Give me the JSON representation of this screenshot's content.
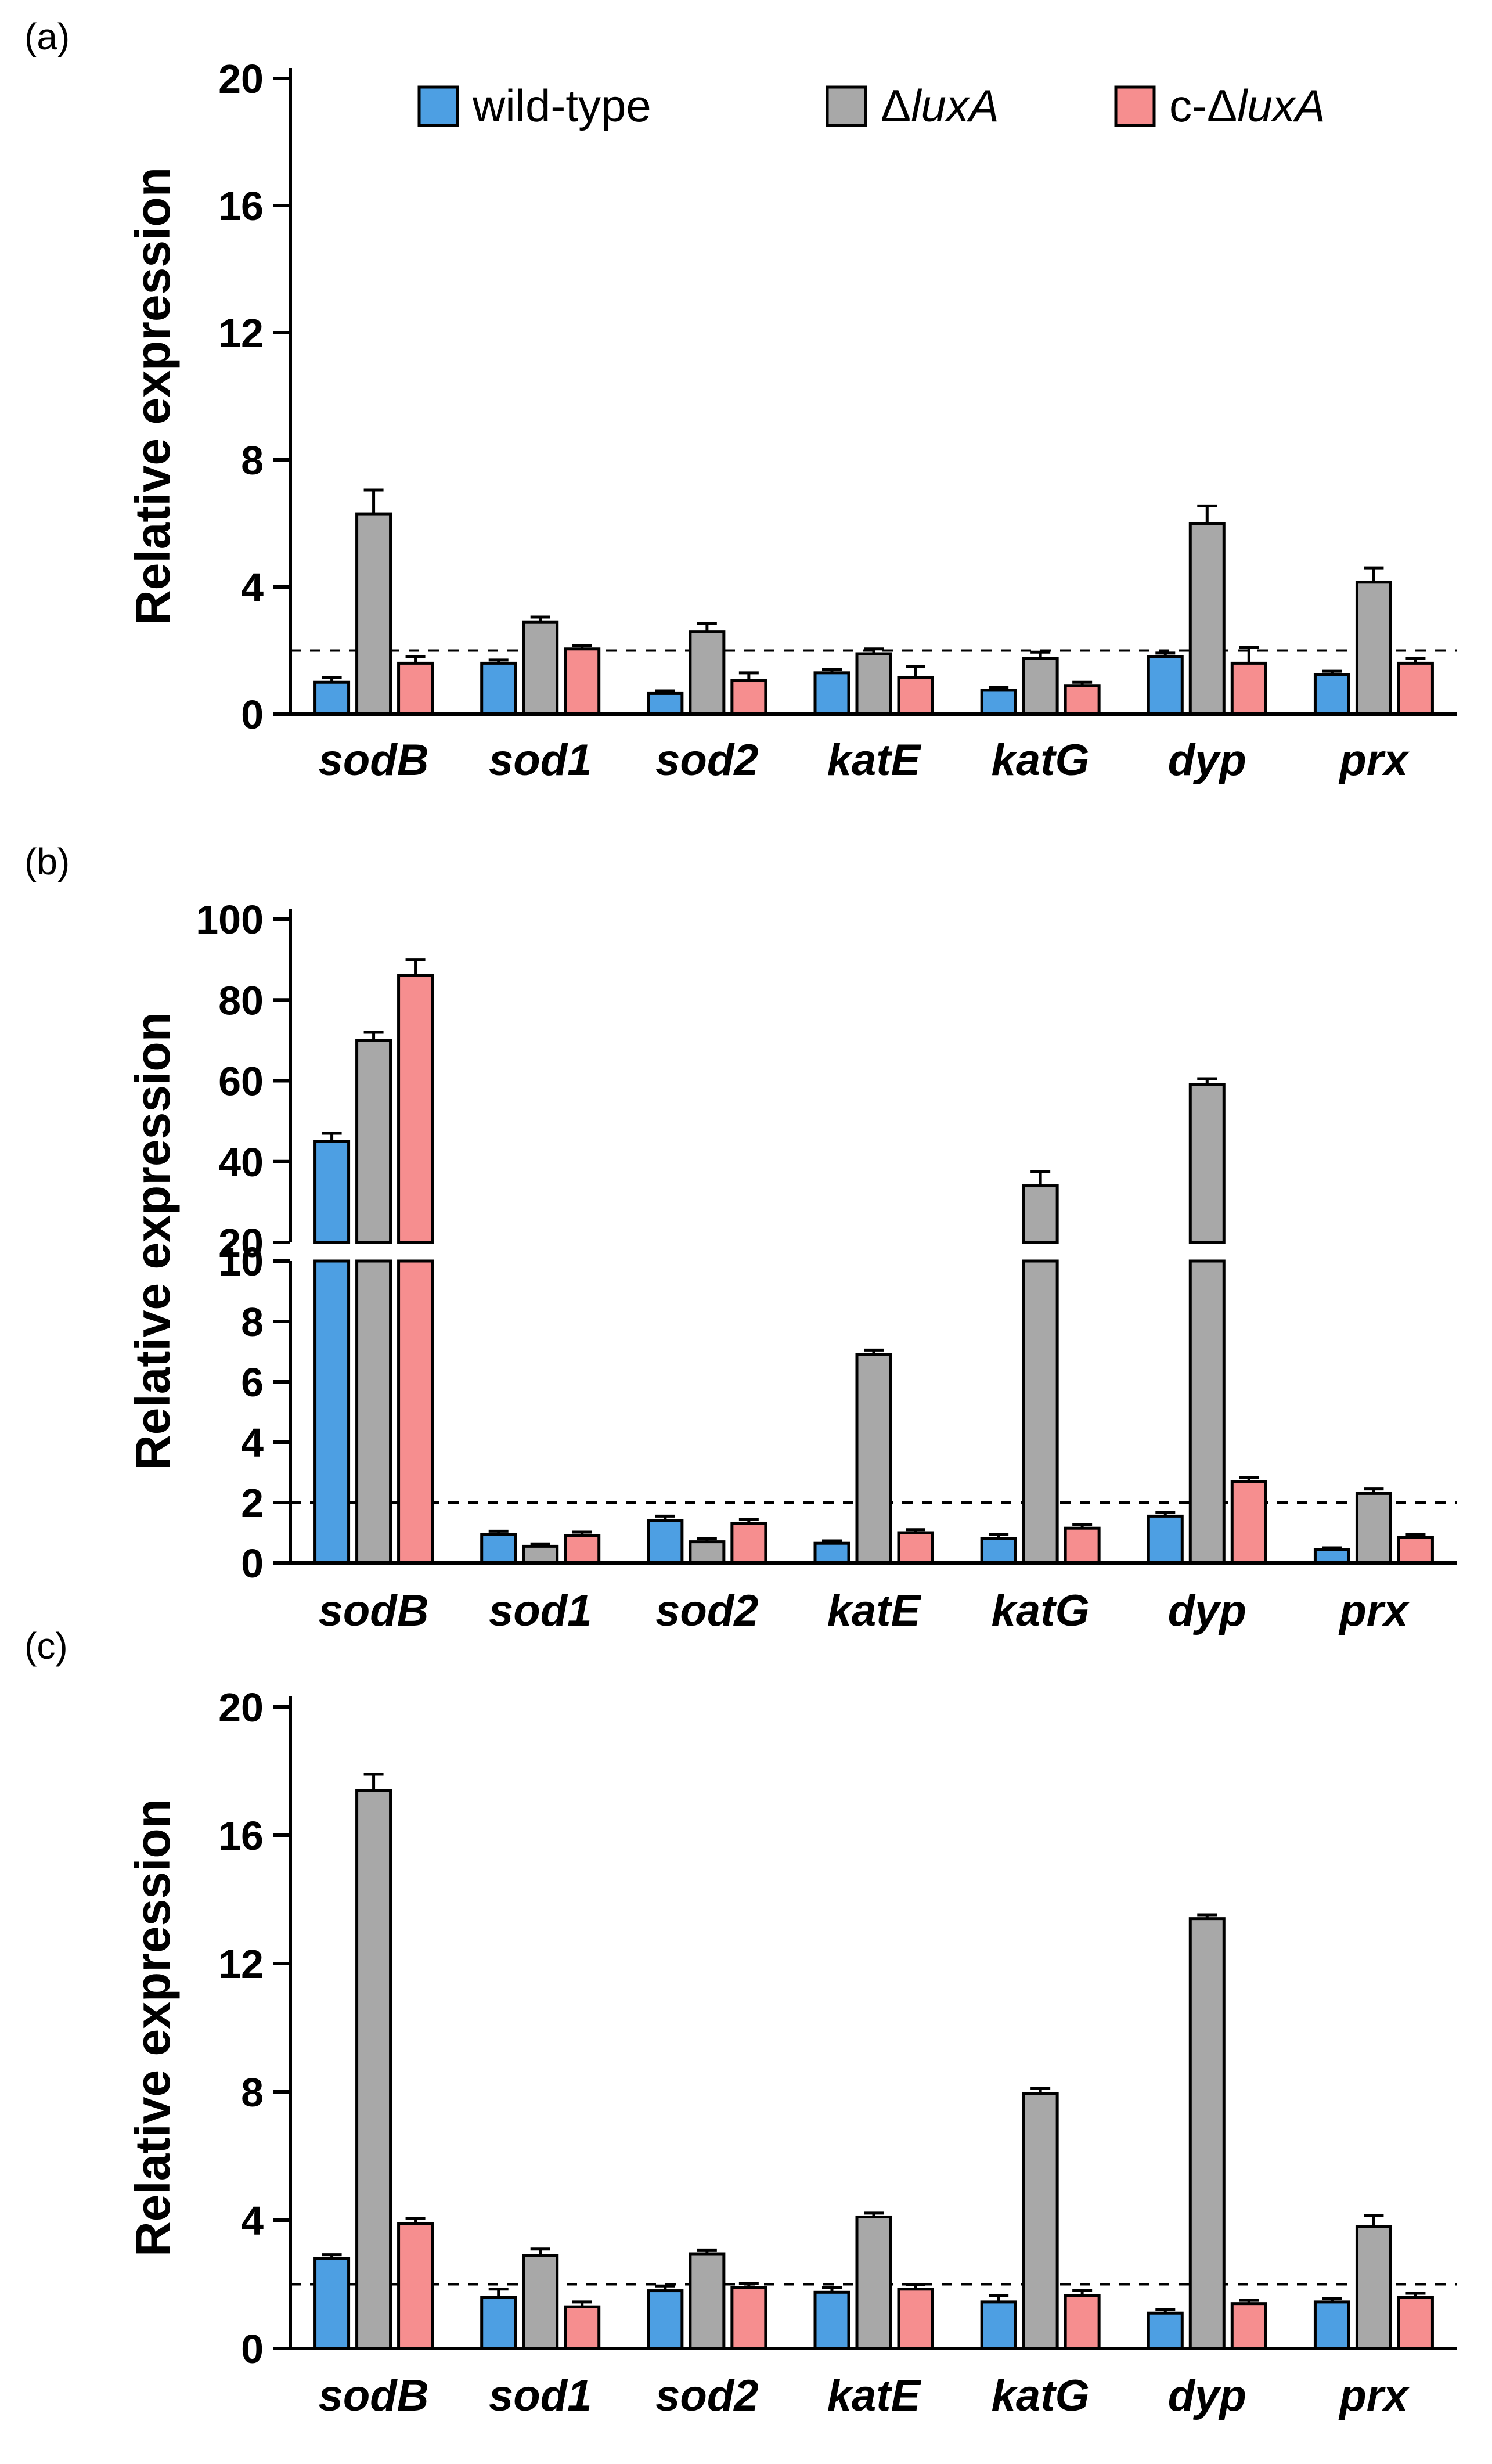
{
  "figure": {
    "background": "#ffffff",
    "panels": [
      {
        "id": "a",
        "label": "(a)"
      },
      {
        "id": "b",
        "label": "(b)"
      },
      {
        "id": "c",
        "label": "(c)"
      }
    ]
  },
  "legend": {
    "position": "top-inside-panel-a",
    "swatch_border": "#000000",
    "items": [
      {
        "name": "wild-type",
        "plain": "wild-type",
        "italic": "",
        "color": "#4D9FE3"
      },
      {
        "name": "delta-luxA",
        "plain": "Δ",
        "italic": "luxA",
        "color": "#A8A8A8"
      },
      {
        "name": "c-delta-luxA",
        "plain": "c-Δ",
        "italic": "luxA",
        "color": "#F68E8F"
      }
    ]
  },
  "chart_data": [
    {
      "panel": "a",
      "type": "bar",
      "title": "",
      "ylabel": "Relative expression",
      "xlabel": "",
      "ylim": [
        0,
        20
      ],
      "yticks": [
        0,
        4,
        8,
        12,
        16,
        20
      ],
      "reference_line": 2,
      "grid": false,
      "categories": [
        "sodB",
        "sod1",
        "sod2",
        "katE",
        "katG",
        "dyp",
        "prx"
      ],
      "series": [
        {
          "name": "wild-type",
          "values": [
            1.0,
            1.6,
            0.65,
            1.3,
            0.75,
            1.8,
            1.25
          ],
          "errors": [
            0.15,
            0.1,
            0.08,
            0.1,
            0.08,
            0.12,
            0.1
          ]
        },
        {
          "name": "ΔluxA",
          "values": [
            6.3,
            2.9,
            2.6,
            1.9,
            1.75,
            6.0,
            4.15
          ],
          "errors": [
            0.75,
            0.15,
            0.25,
            0.15,
            0.2,
            0.55,
            0.45
          ]
        },
        {
          "name": "c-ΔluxA",
          "values": [
            1.6,
            2.05,
            1.05,
            1.15,
            0.9,
            1.6,
            1.6
          ],
          "errors": [
            0.2,
            0.1,
            0.25,
            0.35,
            0.1,
            0.5,
            0.15
          ]
        }
      ]
    },
    {
      "panel": "b",
      "type": "bar",
      "title": "",
      "ylabel": "Relative expression",
      "xlabel": "",
      "axis_break": {
        "lower_range": [
          0,
          10
        ],
        "lower_ticks": [
          0,
          2,
          4,
          6,
          8,
          10
        ],
        "upper_range": [
          20,
          100
        ],
        "upper_ticks": [
          20,
          40,
          60,
          80,
          100
        ]
      },
      "reference_line": 2,
      "grid": false,
      "categories": [
        "sodB",
        "sod1",
        "sod2",
        "katE",
        "katG",
        "dyp",
        "prx"
      ],
      "series": [
        {
          "name": "wild-type",
          "values": [
            45,
            0.95,
            1.4,
            0.65,
            0.8,
            1.55,
            0.45
          ],
          "errors": [
            2,
            0.1,
            0.15,
            0.08,
            0.15,
            0.12,
            0.05
          ]
        },
        {
          "name": "ΔluxA",
          "values": [
            70,
            0.55,
            0.7,
            6.9,
            34,
            59,
            2.3
          ],
          "errors": [
            2,
            0.08,
            0.1,
            0.15,
            3.5,
            1.5,
            0.15
          ]
        },
        {
          "name": "c-ΔluxA",
          "values": [
            86,
            0.9,
            1.3,
            1.0,
            1.15,
            2.7,
            0.85
          ],
          "errors": [
            4,
            0.12,
            0.15,
            0.1,
            0.12,
            0.12,
            0.1
          ]
        }
      ]
    },
    {
      "panel": "c",
      "type": "bar",
      "title": "",
      "ylabel": "Relative expression",
      "xlabel": "",
      "ylim": [
        0,
        20
      ],
      "yticks": [
        0,
        4,
        8,
        12,
        16,
        20
      ],
      "reference_line": 2,
      "grid": false,
      "categories": [
        "sodB",
        "sod1",
        "sod2",
        "katE",
        "katG",
        "dyp",
        "prx"
      ],
      "series": [
        {
          "name": "wild-type",
          "values": [
            2.8,
            1.6,
            1.8,
            1.75,
            1.45,
            1.1,
            1.45
          ],
          "errors": [
            0.12,
            0.25,
            0.15,
            0.15,
            0.2,
            0.12,
            0.1
          ]
        },
        {
          "name": "ΔluxA",
          "values": [
            17.4,
            2.9,
            2.95,
            4.1,
            7.95,
            13.4,
            3.8
          ],
          "errors": [
            0.5,
            0.2,
            0.12,
            0.12,
            0.15,
            0.12,
            0.35
          ]
        },
        {
          "name": "c-ΔluxA",
          "values": [
            3.9,
            1.3,
            1.9,
            1.85,
            1.65,
            1.4,
            1.6
          ],
          "errors": [
            0.15,
            0.15,
            0.12,
            0.15,
            0.15,
            0.1,
            0.12
          ]
        }
      ]
    }
  ]
}
